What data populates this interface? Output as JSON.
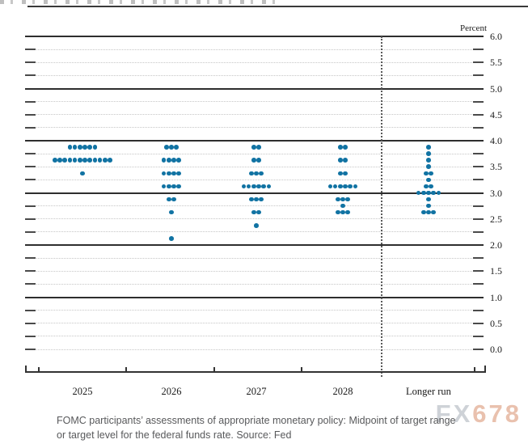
{
  "header": {
    "top_rule": true
  },
  "axis": {
    "unit_label": "Percent",
    "y_tick_labels": [
      "6.0",
      "5.5",
      "5.0",
      "4.5",
      "4.0",
      "3.5",
      "3.0",
      "2.5",
      "2.0",
      "1.5",
      "1.0",
      "0.5",
      "0.0"
    ]
  },
  "caption": {
    "line1": "FOMC participants’ assessments of appropriate monetary policy: Midpoint of target range",
    "line2": "or target level for the federal funds rate. Source: Fed"
  },
  "watermark": {
    "part1": "FX",
    "part2": "678"
  },
  "chart_data": {
    "type": "scatter",
    "subtype": "fomc-dot-plot",
    "title": "FOMC participants’ assessments of appropriate monetary policy: Midpoint of target range or target level for the federal funds rate. Source: Fed",
    "ylabel": "Percent",
    "ylim": [
      0.0,
      6.0
    ],
    "y_major_step": 0.5,
    "y_minor_step": 0.25,
    "solid_gridlines": [
      6.0,
      5.0,
      4.0,
      3.0,
      2.0,
      1.0
    ],
    "grid": "dotted-minor",
    "legend_position": "none",
    "dot_color": "#1173a3",
    "separator_before_last_column": true,
    "columns": [
      {
        "label": "2025",
        "dots": [
          {
            "v": 3.875,
            "n": 6
          },
          {
            "v": 3.625,
            "n": 12
          },
          {
            "v": 3.375,
            "n": 1
          }
        ]
      },
      {
        "label": "2026",
        "dots": [
          {
            "v": 3.875,
            "n": 3
          },
          {
            "v": 3.625,
            "n": 4
          },
          {
            "v": 3.375,
            "n": 4
          },
          {
            "v": 3.125,
            "n": 4
          },
          {
            "v": 2.875,
            "n": 2
          },
          {
            "v": 2.625,
            "n": 1
          },
          {
            "v": 2.125,
            "n": 1
          }
        ]
      },
      {
        "label": "2027",
        "dots": [
          {
            "v": 3.875,
            "n": 2
          },
          {
            "v": 3.625,
            "n": 2
          },
          {
            "v": 3.375,
            "n": 3
          },
          {
            "v": 3.125,
            "n": 6
          },
          {
            "v": 2.875,
            "n": 3
          },
          {
            "v": 2.625,
            "n": 2
          },
          {
            "v": 2.375,
            "n": 1
          }
        ]
      },
      {
        "label": "2028",
        "dots": [
          {
            "v": 3.875,
            "n": 2
          },
          {
            "v": 3.625,
            "n": 2
          },
          {
            "v": 3.375,
            "n": 2
          },
          {
            "v": 3.125,
            "n": 6
          },
          {
            "v": 2.875,
            "n": 3
          },
          {
            "v": 2.75,
            "n": 1
          },
          {
            "v": 2.625,
            "n": 3
          }
        ]
      },
      {
        "label": "Longer run",
        "dots": [
          {
            "v": 3.875,
            "n": 1
          },
          {
            "v": 3.75,
            "n": 1
          },
          {
            "v": 3.625,
            "n": 1
          },
          {
            "v": 3.5,
            "n": 1
          },
          {
            "v": 3.375,
            "n": 2
          },
          {
            "v": 3.25,
            "n": 1
          },
          {
            "v": 3.125,
            "n": 2
          },
          {
            "v": 3.0,
            "n": 5
          },
          {
            "v": 2.875,
            "n": 1
          },
          {
            "v": 2.75,
            "n": 1
          },
          {
            "v": 2.625,
            "n": 3
          }
        ]
      }
    ]
  }
}
